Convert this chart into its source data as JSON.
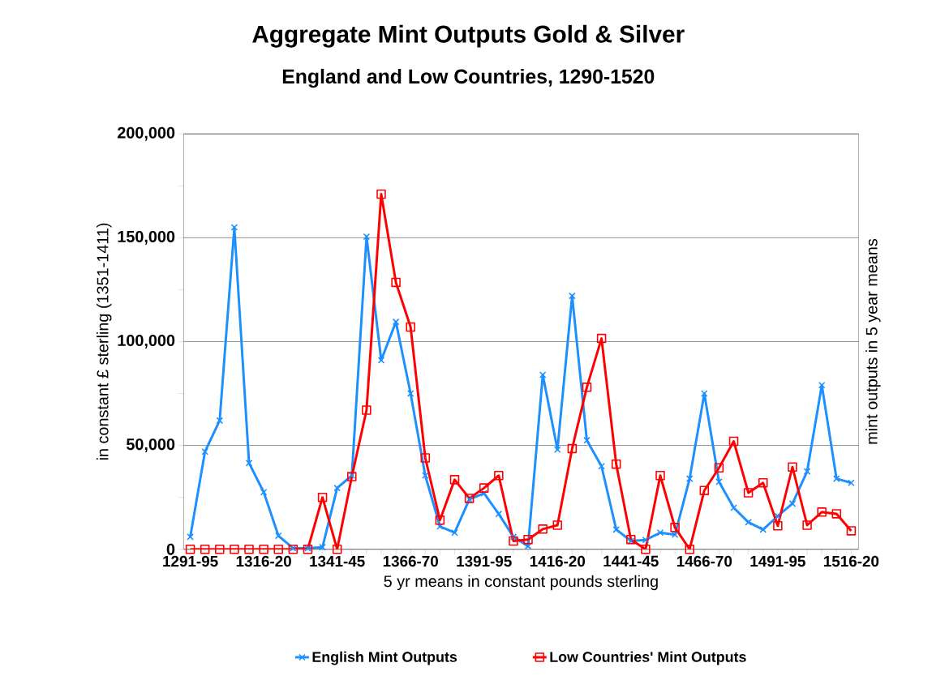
{
  "chart_data": {
    "type": "line",
    "title": "Aggregate Mint Outputs Gold & Silver",
    "subtitle": "England and Low Countries, 1290-1520",
    "xlabel": "5 yr means in constant pounds sterling",
    "ylabel": "in constant £ sterling (1351-1411)",
    "y2label": "mint outputs in 5 year means",
    "categories": [
      "1291-95",
      null,
      null,
      null,
      null,
      "1316-20",
      null,
      null,
      null,
      null,
      "1341-45",
      null,
      null,
      null,
      null,
      "1366-70",
      null,
      null,
      null,
      null,
      "1391-95",
      null,
      null,
      null,
      null,
      "1416-20",
      null,
      null,
      null,
      null,
      "1441-45",
      null,
      null,
      null,
      null,
      "1466-70",
      null,
      null,
      null,
      null,
      "1491-95",
      null,
      null,
      null,
      null,
      "1516-20"
    ],
    "series": [
      {
        "name": "English Mint Outputs",
        "color": "#1e8fff",
        "marker": "cross",
        "values": [
          6000,
          47000,
          62000,
          155000,
          41500,
          27500,
          6500,
          500,
          500,
          1000,
          29500,
          35500,
          150500,
          91000,
          109500,
          75000,
          35500,
          11000,
          8000,
          24000,
          27000,
          17000,
          6000,
          1500,
          84000,
          48000,
          122000,
          52500,
          40000,
          9500,
          4000,
          4500,
          8000,
          7000,
          34000,
          75000,
          32500,
          20000,
          13000,
          9500,
          16000,
          22000,
          37500,
          79000,
          34000,
          32000
        ]
      },
      {
        "name": "Low Countries' Mint Outputs",
        "color": "#ff0000",
        "marker": "square",
        "values": [
          0,
          0,
          0,
          0,
          0,
          0,
          0,
          0,
          0,
          25000,
          0,
          35000,
          67000,
          171000,
          128500,
          107000,
          44000,
          14000,
          33500,
          24500,
          29500,
          35500,
          4000,
          4700,
          9700,
          11600,
          48500,
          78000,
          101500,
          41000,
          4700,
          0,
          35500,
          10500,
          0,
          28300,
          39200,
          52000,
          27200,
          32000,
          11300,
          39600,
          11600,
          17900,
          17100,
          8900
        ]
      }
    ],
    "ylim": [
      0,
      200000
    ],
    "yticks": [
      {
        "value": 0,
        "label": "0"
      },
      {
        "value": 25000,
        "label": null
      },
      {
        "value": 50000,
        "label": "50,000"
      },
      {
        "value": 75000,
        "label": null
      },
      {
        "value": 100000,
        "label": "100,000"
      },
      {
        "value": 125000,
        "label": null
      },
      {
        "value": 150000,
        "label": "150,000"
      },
      {
        "value": 175000,
        "label": null
      },
      {
        "value": 200000,
        "label": "200,000"
      }
    ],
    "grid": "y",
    "legend": "bottom",
    "line_style": "solid"
  }
}
